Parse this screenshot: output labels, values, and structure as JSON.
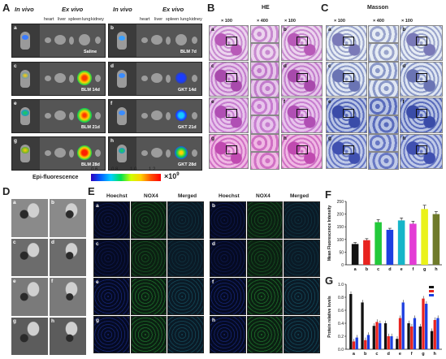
{
  "panels": {
    "A": "A",
    "B": "B",
    "C": "C",
    "D": "D",
    "E": "E",
    "F": "F",
    "G": "G"
  },
  "panelA": {
    "in_vivo": "In vivo",
    "ex_vivo": "Ex vivo",
    "organs": [
      "heart",
      "liver",
      "spleen",
      "lung",
      "kidney"
    ],
    "rows": [
      {
        "left_letter": "a",
        "left_label": "Saline",
        "right_letter": "b",
        "right_label": "BLM 7d"
      },
      {
        "left_letter": "c",
        "left_label": "BLM 14d",
        "right_letter": "d",
        "right_label": "GKT 14d"
      },
      {
        "left_letter": "e",
        "left_label": "BLM 21d",
        "right_letter": "f",
        "right_label": "GKT 21d"
      },
      {
        "left_letter": "g",
        "left_label": "BLM 28d",
        "right_letter": "h",
        "right_label": "GKT 28d"
      }
    ],
    "colorbar_label": "Epi-fluorescence",
    "colorbar_ticks": [
      "0.6",
      "0.8",
      "1.0",
      "1.2"
    ],
    "colorbar_unit": "×10",
    "colorbar_exp": "9"
  },
  "panelB": {
    "title": "HE",
    "mag": [
      "× 100",
      "× 400",
      "× 100"
    ],
    "letters": [
      "a",
      "b",
      "c",
      "d",
      "e",
      "f",
      "g",
      "h"
    ]
  },
  "panelC": {
    "title": "Masson",
    "mag": [
      "× 100",
      "× 400",
      "× 100"
    ],
    "letters": [
      "a",
      "b",
      "c",
      "d",
      "e",
      "f",
      "g",
      "h"
    ]
  },
  "panelD": {
    "letters": [
      "a",
      "b",
      "c",
      "d",
      "e",
      "f",
      "g",
      "h"
    ]
  },
  "panelE": {
    "headers": [
      "Hoechst",
      "NOX4",
      "Merged",
      "Hoechst",
      "NOX4",
      "Merged"
    ],
    "letters": [
      "a",
      "b",
      "c",
      "d",
      "e",
      "f",
      "g",
      "h"
    ]
  },
  "colors": {
    "red": "#e8231f",
    "black": "#111111",
    "green": "#23c93a",
    "blue": "#1d3fe0",
    "cyan": "#16b5c9",
    "magenta": "#e33bd5",
    "yellow": "#eaf21a",
    "olive": "#6f7a2a"
  },
  "chart_data": [
    {
      "type": "bar",
      "ylabel": "Mean Fluorescence Intensity",
      "categories": [
        "a",
        "b",
        "c",
        "d",
        "e",
        "f",
        "g",
        "h"
      ],
      "values": [
        82,
        97,
        168,
        138,
        175,
        162,
        220,
        200
      ],
      "errors": [
        6,
        6,
        10,
        6,
        10,
        10,
        15,
        10
      ],
      "colors": [
        "#111111",
        "#e8231f",
        "#23c93a",
        "#1d3fe0",
        "#16b5c9",
        "#e33bd5",
        "#eaf21a",
        "#6f7a2a"
      ],
      "yticks": [
        "0",
        "50",
        "100",
        "150",
        "200",
        "250"
      ],
      "ylim": [
        0,
        250
      ]
    },
    {
      "type": "bar",
      "ylabel": "Protein relative levels",
      "categories": [
        "a",
        "b",
        "c",
        "d",
        "e",
        "f",
        "g",
        "h"
      ],
      "series": [
        {
          "color": "#111111",
          "values": [
            0.85,
            0.72,
            0.36,
            0.4,
            0.16,
            0.4,
            0.35,
            0.28
          ]
        },
        {
          "color": "#e8231f",
          "values": [
            0.12,
            0.14,
            0.42,
            0.2,
            0.48,
            0.35,
            0.78,
            0.45
          ]
        },
        {
          "color": "#1d3fe0",
          "values": [
            0.18,
            0.22,
            0.4,
            0.2,
            0.72,
            0.48,
            0.7,
            0.48
          ]
        }
      ],
      "yticks": [
        "0.0",
        "0.2",
        "0.4",
        "0.6",
        "0.8",
        "1.0"
      ],
      "ylim": [
        0,
        1.0
      ]
    }
  ]
}
